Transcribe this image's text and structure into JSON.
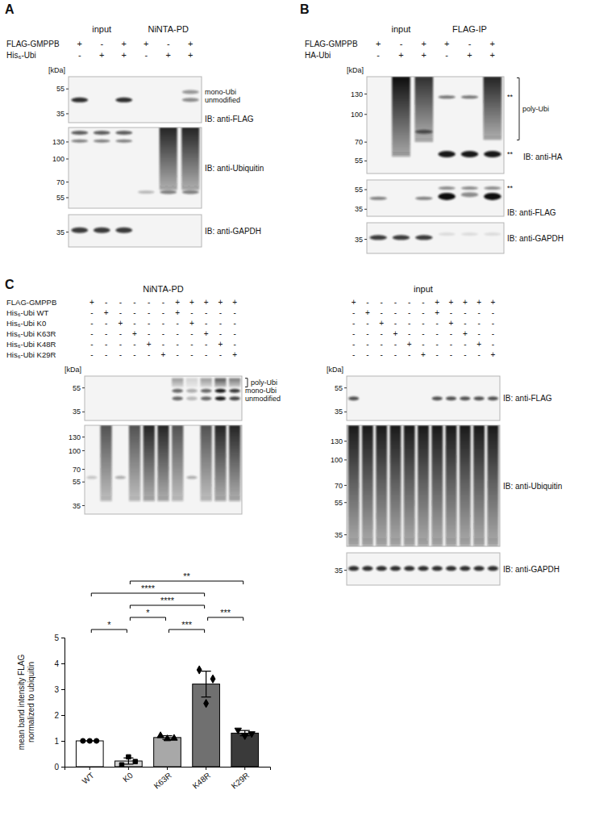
{
  "panels": [
    {
      "letter": "A",
      "unit": "[kDa]",
      "groups": [
        "input",
        "NiNTA-PD"
      ],
      "rows": [
        {
          "label": "FLAG-GMPPB",
          "signs": [
            "+",
            "-",
            "+",
            "+",
            "-",
            "+"
          ]
        },
        {
          "label": "His₆-Ubi",
          "signs": [
            "-",
            "+",
            "+",
            "-",
            "+",
            "+"
          ]
        }
      ],
      "blots": [
        {
          "markers": [
            55,
            35
          ],
          "annotations": [
            "mono-Ubi",
            "unmodified"
          ],
          "label": "IB: anti-FLAG"
        },
        {
          "markers": [
            130,
            100,
            70,
            55
          ],
          "label": "IB: anti-Ubiquitin"
        },
        {
          "markers": [
            35
          ],
          "label": "IB: anti-GAPDH"
        }
      ]
    },
    {
      "letter": "B",
      "unit": "[kDa]",
      "groups": [
        "input",
        "FLAG-IP"
      ],
      "rows": [
        {
          "label": "FLAG-GMPPB",
          "signs": [
            "+",
            "-",
            "+",
            "+",
            "-",
            "+"
          ]
        },
        {
          "label": "HA-Ubi",
          "signs": [
            "-",
            "+",
            "+",
            "-",
            "+",
            "+"
          ]
        }
      ],
      "blots": [
        {
          "markers": [
            130,
            100,
            70,
            55
          ],
          "annotations": [
            "**",
            "poly-Ubi",
            "**"
          ],
          "label": "IB: anti-HA"
        },
        {
          "markers": [
            55,
            35
          ],
          "annotations": [
            "**"
          ],
          "label": "IB: anti-FLAG"
        },
        {
          "markers": [
            35
          ],
          "label": "IB: anti-GAPDH"
        }
      ]
    },
    {
      "letter": "C",
      "unit": "[kDa]",
      "groups": [
        "NiNTA-PD"
      ],
      "rows": [
        {
          "label": "FLAG-GMPPB",
          "signs": [
            "+",
            "-",
            "-",
            "-",
            "-",
            "-",
            "+",
            "+",
            "+",
            "+",
            "+"
          ]
        },
        {
          "label": "His₆-Ubi WT",
          "signs": [
            "-",
            "+",
            "-",
            "-",
            "-",
            "-",
            "+",
            "-",
            "-",
            "-",
            "-"
          ]
        },
        {
          "label": "His₆-Ubi K0",
          "signs": [
            "-",
            "-",
            "+",
            "-",
            "-",
            "-",
            "-",
            "+",
            "-",
            "-",
            "-"
          ]
        },
        {
          "label": "His₆-Ubi K63R",
          "signs": [
            "-",
            "-",
            "-",
            "+",
            "-",
            "-",
            "-",
            "-",
            "+",
            "-",
            "-"
          ]
        },
        {
          "label": "His₆-Ubi K48R",
          "signs": [
            "-",
            "-",
            "-",
            "-",
            "+",
            "-",
            "-",
            "-",
            "-",
            "+",
            "-"
          ]
        },
        {
          "label": "His₆-Ubi K29R",
          "signs": [
            "-",
            "-",
            "-",
            "-",
            "-",
            "+",
            "-",
            "-",
            "-",
            "-",
            "+"
          ]
        }
      ],
      "blots": [
        {
          "markers": [
            55,
            35
          ],
          "annotations": [
            "poly-Ubi",
            "mono-Ubi",
            "unmodified"
          ]
        },
        {
          "markers": [
            130,
            100,
            70,
            55,
            35
          ]
        }
      ]
    },
    {
      "unit": "[kDa]",
      "groups": [
        "input"
      ],
      "rows": [
        {
          "signs": [
            "+",
            "-",
            "-",
            "-",
            "-",
            "-",
            "+",
            "+",
            "+",
            "+",
            "+"
          ]
        },
        {
          "signs": [
            "-",
            "+",
            "-",
            "-",
            "-",
            "-",
            "+",
            "-",
            "-",
            "-",
            "-"
          ]
        },
        {
          "signs": [
            "-",
            "-",
            "+",
            "-",
            "-",
            "-",
            "-",
            "+",
            "-",
            "-",
            "-"
          ]
        },
        {
          "signs": [
            "-",
            "-",
            "-",
            "+",
            "-",
            "-",
            "-",
            "-",
            "+",
            "-",
            "-"
          ]
        },
        {
          "signs": [
            "-",
            "-",
            "-",
            "-",
            "+",
            "-",
            "-",
            "-",
            "-",
            "+",
            "-"
          ]
        },
        {
          "signs": [
            "-",
            "-",
            "-",
            "-",
            "-",
            "+",
            "-",
            "-",
            "-",
            "-",
            "+"
          ]
        }
      ],
      "blots": [
        {
          "markers": [
            55,
            35
          ],
          "label": "IB: anti-FLAG"
        },
        {
          "markers": [
            130,
            100,
            70,
            55,
            35
          ],
          "label": "IB: anti-Ubiquitin"
        },
        {
          "markers": [
            35
          ],
          "label": "IB: anti-GAPDH"
        }
      ]
    }
  ],
  "chart_data": {
    "type": "bar",
    "y_label": "mean band intensity FLAG normalized to ubiquitin",
    "categories": [
      "WT",
      "K0",
      "K63R",
      "K48R",
      "K29R"
    ],
    "values": [
      1.0,
      0.22,
      1.13,
      3.2,
      1.3
    ],
    "errors": [
      0,
      0.12,
      0.07,
      0.5,
      0.1
    ],
    "points": [
      {
        "marker": "circle",
        "values": [
          1.0,
          1.0,
          1.0
        ]
      },
      {
        "marker": "square",
        "values": [
          0.07,
          0.38,
          0.2
        ]
      },
      {
        "marker": "triangle",
        "values": [
          1.2,
          1.08,
          1.1
        ]
      },
      {
        "marker": "diamond",
        "values": [
          3.75,
          2.45,
          3.4
        ]
      },
      {
        "marker": "triangle-down",
        "values": [
          1.42,
          1.2,
          1.28
        ]
      }
    ],
    "colors": [
      "#ffffff",
      "#d4d4d4",
      "#a8a8a8",
      "#707070",
      "#3a3a3a"
    ],
    "ylim": [
      0,
      5
    ],
    "yticks": [
      0,
      1,
      2,
      3,
      4,
      5
    ],
    "comparisons": [
      {
        "pair": [
          1,
          4
        ],
        "label": "**"
      },
      {
        "pair": [
          0,
          3
        ],
        "label": "****"
      },
      {
        "pair": [
          1,
          3
        ],
        "label": "****"
      },
      {
        "pair": [
          0,
          1
        ],
        "label": "*"
      },
      {
        "pair": [
          1,
          2
        ],
        "label": "*"
      },
      {
        "pair": [
          2,
          3
        ],
        "label": "***"
      },
      {
        "pair": [
          3,
          4
        ],
        "label": "***"
      }
    ]
  }
}
